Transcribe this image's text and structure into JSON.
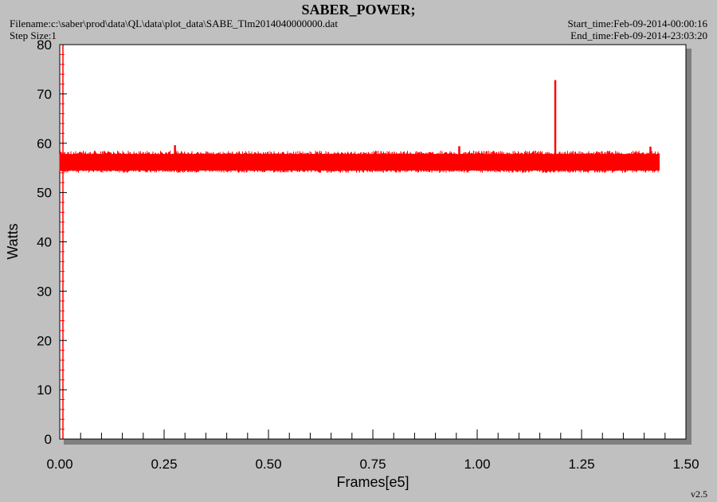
{
  "header": {
    "title": "SABER_POWER;",
    "filename": "Filename:c:\\saber\\prod\\data\\QL\\data\\plot_data\\SABE_Tlm2014040000000.dat",
    "step_size": "Step Size:1",
    "start_time": "Start_time:Feb-09-2014-00:00:16",
    "end_time": "End_time:Feb-09-2014-23:03:20"
  },
  "footer": {
    "version": "v2.5"
  },
  "colors": {
    "series": "#ff0000",
    "background": "#c0c0c0",
    "plot_bg": "#ffffff",
    "shadow": "#808080"
  },
  "chart_data": {
    "type": "line",
    "title": "SABER_POWER;",
    "xlabel": "Frames[e5]",
    "ylabel": "Watts",
    "xlim": [
      0,
      1.5
    ],
    "ylim": [
      0,
      80
    ],
    "x_ticks": [
      "0.00",
      "0.25",
      "0.50",
      "0.75",
      "1.00",
      "1.25",
      "1.50"
    ],
    "y_ticks": [
      "0",
      "10",
      "20",
      "30",
      "40",
      "50",
      "60",
      "70",
      "80"
    ],
    "grid": false,
    "series": [
      {
        "x_range": [
          0.0,
          1.437
        ],
        "typical_low": 54.5,
        "typical_high": 57.8,
        "min": 54.0,
        "max": 58.5,
        "spikes": [
          {
            "x": 0.276,
            "y": 59.6
          },
          {
            "x": 0.957,
            "y": 59.4
          },
          {
            "x": 1.187,
            "y": 72.8
          },
          {
            "x": 1.415,
            "y": 59.3
          }
        ]
      }
    ]
  }
}
